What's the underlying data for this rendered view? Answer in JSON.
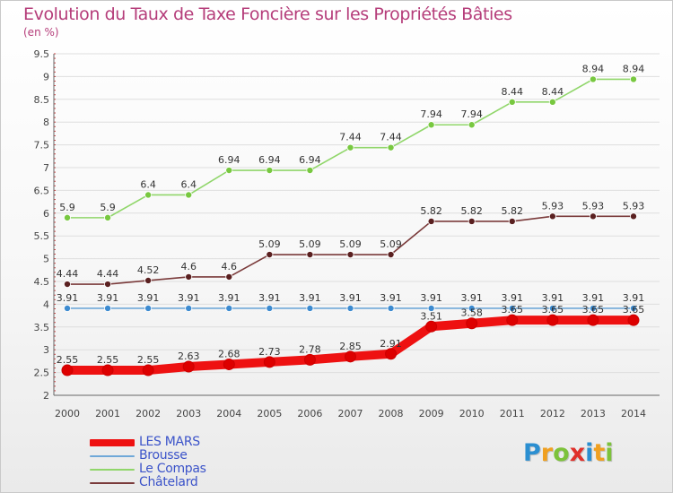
{
  "title": "Evolution du Taux de Taxe Foncière sur les Propriétés Bâties",
  "subtitle": "(en %)",
  "logo": {
    "letters": [
      "P",
      "r",
      "o",
      "x",
      "i",
      "t",
      "i"
    ],
    "colors": [
      "#2b8fd1",
      "#f0a020",
      "#7dc23b",
      "#e0302a",
      "#2b8fd1",
      "#f0a020",
      "#7dc23b"
    ]
  },
  "chart_data": {
    "type": "line",
    "x": [
      2000,
      2001,
      2002,
      2003,
      2004,
      2005,
      2006,
      2007,
      2008,
      2009,
      2010,
      2011,
      2012,
      2013,
      2014
    ],
    "xticks": [
      "2000",
      "2001",
      "2002",
      "2003",
      "2004",
      "2005",
      "2006",
      "2007",
      "2008",
      "2009",
      "2010",
      "2011",
      "2012",
      "2013",
      "2014"
    ],
    "ylim": [
      2,
      9.5
    ],
    "yticks": [
      "2",
      "2.5",
      "3",
      "3.5",
      "4",
      "4.5",
      "5",
      "5.5",
      "6",
      "6.5",
      "7",
      "7.5",
      "8",
      "8.5",
      "9",
      "9.5"
    ],
    "grid": "horizontal",
    "legend_position": "bottom-left",
    "series": [
      {
        "name": "Le Compas",
        "color": "#90d66a",
        "marker_color": "#78c840",
        "values": [
          5.9,
          5.9,
          6.4,
          6.4,
          6.94,
          6.94,
          6.94,
          7.44,
          7.44,
          7.94,
          7.94,
          8.44,
          8.44,
          8.94,
          8.94
        ],
        "labels": [
          "5.9",
          "5.9",
          "6.4",
          "6.4",
          "6.94",
          "6.94",
          "6.94",
          "7.44",
          "7.44",
          "7.94",
          "7.94",
          "8.44",
          "8.44",
          "8.94",
          "8.94"
        ]
      },
      {
        "name": "Châtelard",
        "color": "#7a3a3a",
        "marker_color": "#5a2020",
        "values": [
          4.44,
          4.44,
          4.52,
          4.6,
          4.6,
          5.09,
          5.09,
          5.09,
          5.09,
          5.82,
          5.82,
          5.82,
          5.93,
          5.93,
          5.93
        ],
        "labels": [
          "4.44",
          "4.44",
          "4.52",
          "4.6",
          "4.6",
          "5.09",
          "5.09",
          "5.09",
          "5.09",
          "5.82",
          "5.82",
          "5.82",
          "5.93",
          "5.93",
          "5.93"
        ]
      },
      {
        "name": "Brousse",
        "color": "#6fa8d8",
        "marker_color": "#3d8bd0",
        "values": [
          3.91,
          3.91,
          3.91,
          3.91,
          3.91,
          3.91,
          3.91,
          3.91,
          3.91,
          3.91,
          3.91,
          3.91,
          3.91,
          3.91,
          3.91
        ],
        "labels": [
          "3.91",
          "3.91",
          "3.91",
          "3.91",
          "3.91",
          "3.91",
          "3.91",
          "3.91",
          "3.91",
          "3.91",
          "3.91",
          "3.91",
          "3.91",
          "3.91",
          "3.91"
        ]
      },
      {
        "name": "LES MARS",
        "color": "#ee1111",
        "marker_color": "#dd0000",
        "values": [
          2.55,
          2.55,
          2.55,
          2.63,
          2.68,
          2.73,
          2.78,
          2.85,
          2.91,
          3.51,
          3.58,
          3.65,
          3.65,
          3.65,
          3.65
        ],
        "labels": [
          "2.55",
          "2.55",
          "2.55",
          "2.63",
          "2.68",
          "2.73",
          "2.78",
          "2.85",
          "2.91",
          "3.51",
          "3.58",
          "3.65",
          "3.65",
          "3.65",
          "3.65"
        ]
      }
    ],
    "legend": [
      "LES MARS",
      "Brousse",
      "Le Compas",
      "Châtelard"
    ]
  }
}
